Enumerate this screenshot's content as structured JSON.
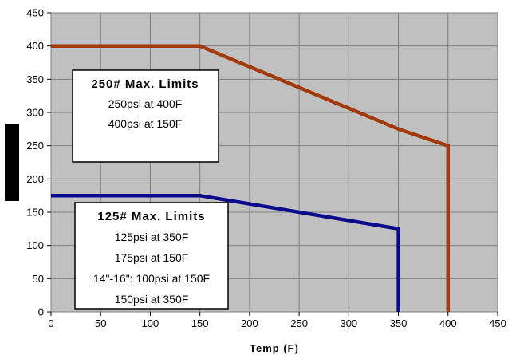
{
  "chart_data": {
    "type": "line",
    "title": "",
    "xlabel": "Temp (F)",
    "ylabel": "",
    "xlim": [
      0,
      450
    ],
    "ylim": [
      0,
      450
    ],
    "x_ticks": [
      0,
      50,
      100,
      150,
      200,
      250,
      300,
      350,
      400,
      450
    ],
    "y_ticks": [
      0,
      50,
      100,
      150,
      200,
      250,
      300,
      350,
      400,
      450
    ],
    "grid": true,
    "plot_background": "#c0c0c0",
    "series": [
      {
        "color": "#a33a0c",
        "points": [
          [
            0,
            400
          ],
          [
            150,
            400
          ],
          [
            350,
            275
          ],
          [
            400,
            250
          ],
          [
            400,
            0
          ]
        ]
      },
      {
        "color": "#0a0a8c",
        "points": [
          [
            0,
            175
          ],
          [
            150,
            175
          ],
          [
            350,
            125
          ],
          [
            350,
            0
          ]
        ]
      }
    ],
    "annotations": [
      {
        "title": "250# Max. Limits",
        "title_color": "#a33a0c",
        "lines": [
          "250psi at 400F",
          "400psi at 150F"
        ]
      },
      {
        "title": "125# Max. Limits",
        "title_color": "#0a0a8c",
        "lines": [
          "125psi at 350F",
          "175psi at 150F",
          "14\"-16\": 100psi at 150F",
          "150psi at 350F"
        ]
      }
    ]
  }
}
